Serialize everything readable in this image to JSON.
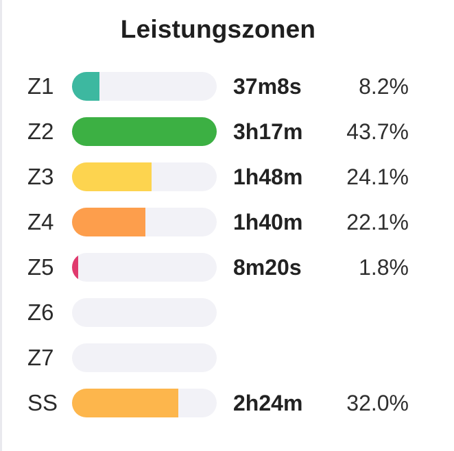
{
  "chart_data": {
    "type": "bar",
    "title": "Leistungszonen",
    "categories": [
      "Z1",
      "Z2",
      "Z3",
      "Z4",
      "Z5",
      "Z6",
      "Z7",
      "SS"
    ],
    "durations": [
      "37m8s",
      "3h17m",
      "1h48m",
      "1h40m",
      "8m20s",
      "",
      "",
      "2h24m"
    ],
    "percents": [
      "8.2%",
      "43.7%",
      "24.1%",
      "22.1%",
      "1.8%",
      "",
      "",
      "32.0%"
    ],
    "values": [
      8.2,
      43.7,
      24.1,
      22.1,
      1.8,
      0,
      0,
      32.0
    ],
    "xlim": [
      0,
      43.7
    ],
    "colors": [
      "#3db8a0",
      "#3cb043",
      "#fdd44f",
      "#fd9e4c",
      "#e03a6e",
      "#f2f2f7",
      "#f2f2f7",
      "#fdb64c"
    ],
    "track_color": "#f2f2f7"
  }
}
